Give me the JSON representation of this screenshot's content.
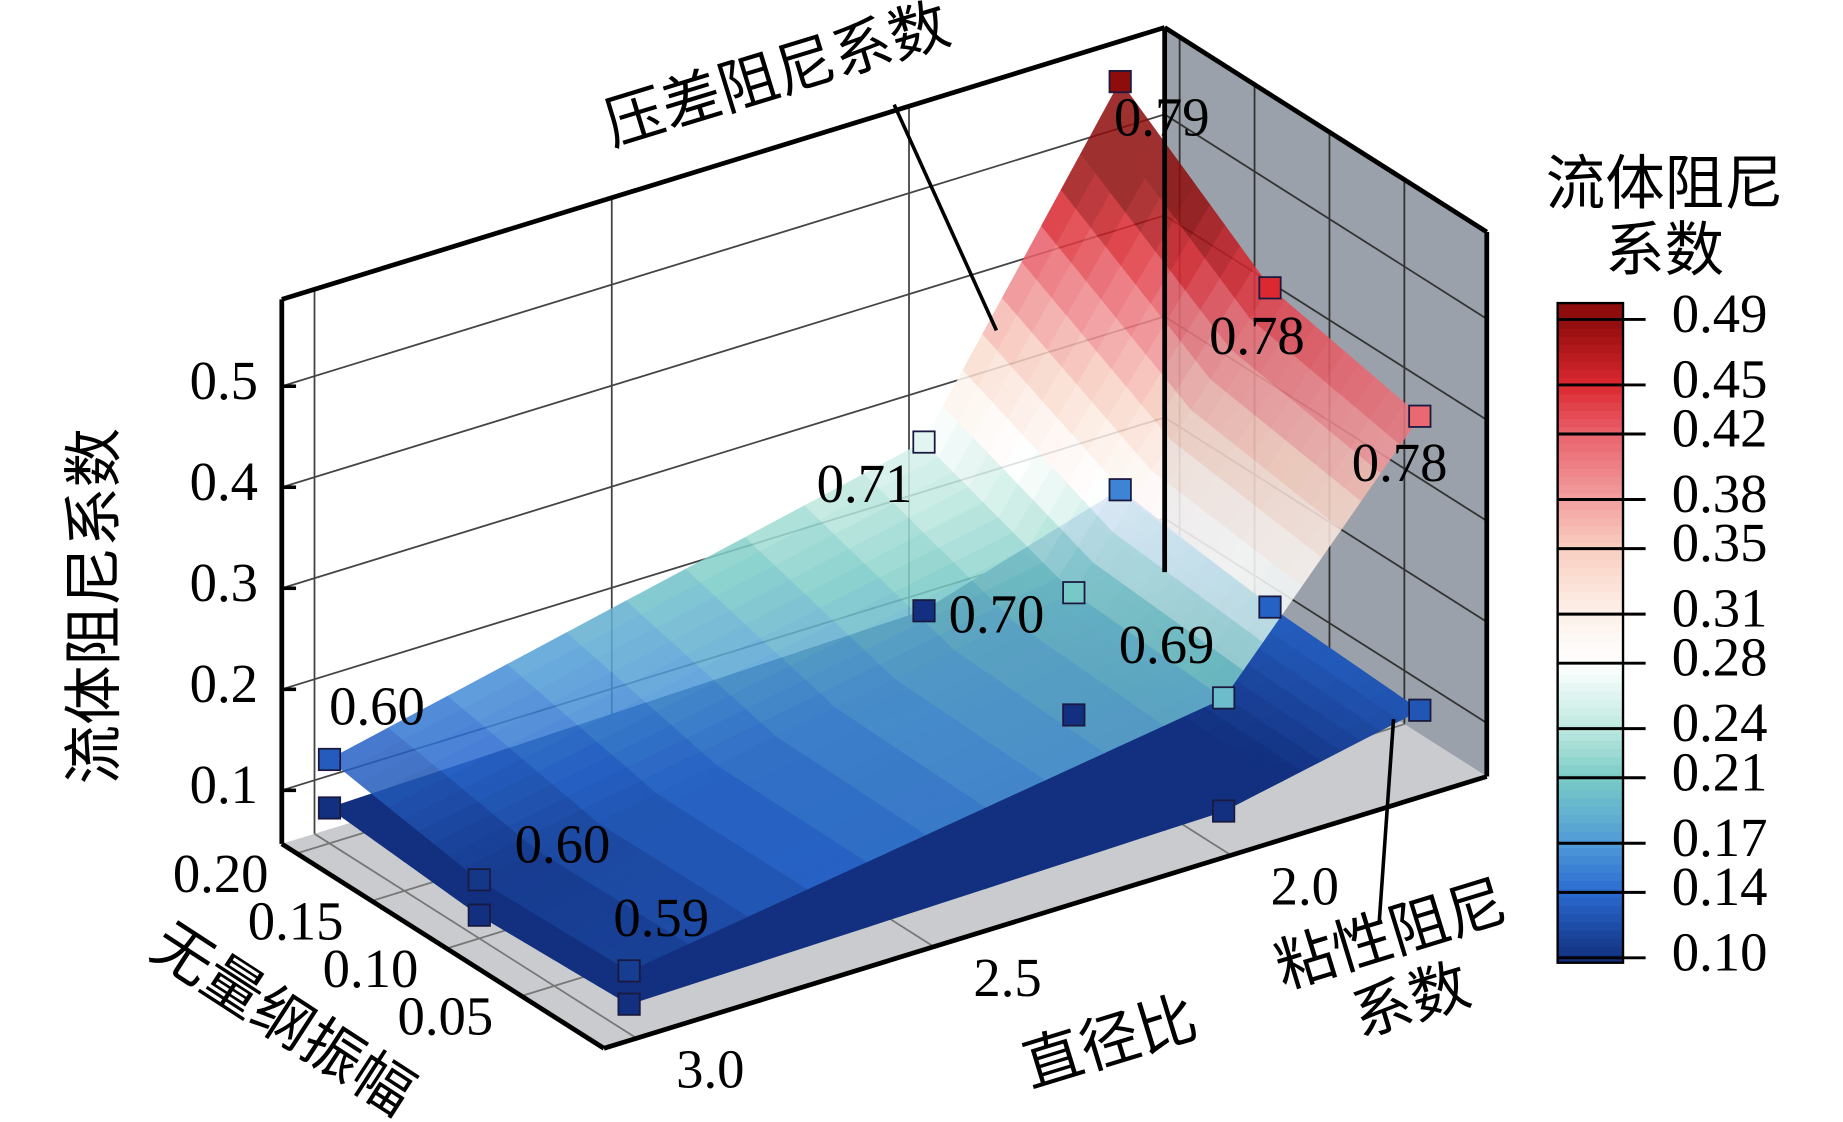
{
  "chart_data": {
    "type": "surface3d",
    "xlabel": "直径比",
    "ylabel": "无量纲振幅",
    "zlabel": "流体阻尼系数",
    "xlim": [
      1.57,
      3.055
    ],
    "xticks": [
      {
        "value": 2,
        "label": "2.0"
      },
      {
        "value": 2.5,
        "label": "2.5"
      },
      {
        "value": 3,
        "label": "3.0"
      }
    ],
    "ylim": [
      -0.005,
      0.21
    ],
    "yticks": [
      {
        "value": 0.05,
        "label": "0.05"
      },
      {
        "value": 0.1,
        "label": "0.10"
      },
      {
        "value": 0.15,
        "label": "0.15"
      },
      {
        "value": 0.2,
        "label": "0.20"
      }
    ],
    "zlim": [
      0.047,
      0.586
    ],
    "zticks": [
      0.1,
      0.2,
      0.3,
      0.4,
      0.5
    ],
    "grid": true,
    "x": [
      3.0,
      2.0,
      1.67
    ],
    "y": [
      0.2,
      0.1,
      0.0
    ],
    "series": [
      {
        "name": "粘性阻尼系数",
        "values": [
          [
            0.082,
            0.07,
            0.076
          ],
          [
            0.096,
            0.087,
            0.086
          ],
          [
            0.156,
            0.134,
            0.126
          ]
        ],
        "opacity": 1
      },
      {
        "name": "压差阻尼系数",
        "values": [
          [
            0.13,
            0.105,
            0.109
          ],
          [
            0.263,
            0.208,
            0.198
          ],
          [
            0.56,
            0.45,
            0.417
          ]
        ],
        "opacity": 0.85,
        "point_annotations": [
          [
            "0.60",
            "0.60",
            "0.59"
          ],
          [
            "0.71",
            "0.70",
            "0.69"
          ],
          [
            "0.79",
            "0.78",
            "0.78"
          ]
        ]
      }
    ],
    "colorbar": {
      "title": "流体阻尼系数",
      "clim": [
        0.097,
        0.5
      ],
      "ticks": [
        {
          "value": 0.1,
          "label": "0.10"
        },
        0.14,
        0.17,
        0.21,
        0.24,
        0.28,
        0.31,
        0.35,
        0.38,
        0.42,
        0.45,
        0.49
      ],
      "colors": [
        "#12307f",
        "#2a6ad0",
        "#4f9ad8",
        "#79cbc6",
        "#bde8df",
        "#ffffff",
        "#fdf1ea",
        "#f8cfc0",
        "#f2a0a0",
        "#e9636d",
        "#dc2830",
        "#8e0c0c"
      ]
    }
  }
}
